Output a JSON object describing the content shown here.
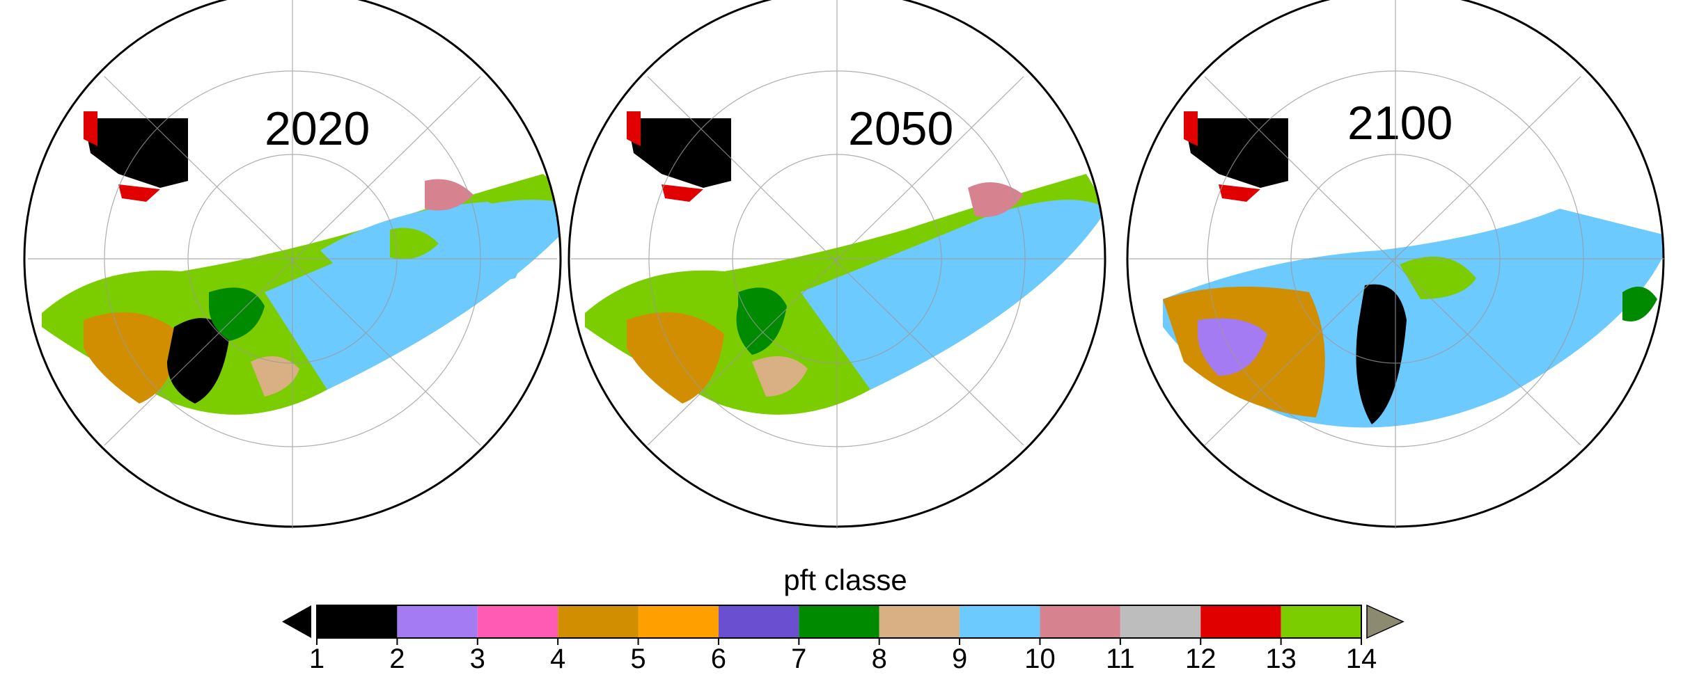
{
  "panels": [
    {
      "year_label": "2020"
    },
    {
      "year_label": "2050"
    },
    {
      "year_label": "2100"
    }
  ],
  "colorbar": {
    "title": "pft classe",
    "tick_labels": [
      "1",
      "2",
      "3",
      "4",
      "5",
      "6",
      "7",
      "8",
      "9",
      "10",
      "11",
      "12",
      "13",
      "14"
    ],
    "classes": [
      {
        "color": "#000000"
      },
      {
        "color": "#a57bf3"
      },
      {
        "color": "#ff5ab4"
      },
      {
        "color": "#d18e00"
      },
      {
        "color": "#ff9f00"
      },
      {
        "color": "#6a4fd1"
      },
      {
        "color": "#008a00"
      },
      {
        "color": "#d9b083"
      },
      {
        "color": "#6ccaff"
      },
      {
        "color": "#d6838f"
      },
      {
        "color": "#bdbdbd"
      },
      {
        "color": "#e00000"
      },
      {
        "color": "#7ccd00"
      }
    ],
    "under_color": "#000000",
    "over_color": "#8c8a70"
  }
}
